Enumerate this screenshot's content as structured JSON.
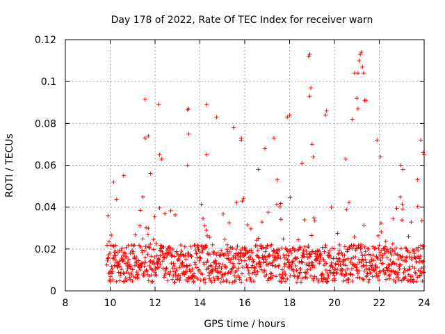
{
  "chart_data": {
    "type": "scatter",
    "title": "Day 178 of 2022, Rate Of TEC Index for receiver warn",
    "xlabel": "GPS time / hours",
    "ylabel": "ROTI / TECUs",
    "xlim": [
      8,
      24
    ],
    "ylim": [
      0,
      0.12
    ],
    "x_ticks": [
      8,
      10,
      12,
      14,
      16,
      18,
      20,
      22,
      24
    ],
    "x_tick_labels": [
      "8",
      "10",
      "12",
      "14",
      "16",
      "18",
      "20",
      "22",
      "24"
    ],
    "y_ticks": [
      0,
      0.02,
      0.04,
      0.06,
      0.08,
      0.1,
      0.12
    ],
    "y_tick_labels": [
      "0",
      "0.02",
      "0.04",
      "0.06",
      "0.08",
      "0.1",
      "0.12"
    ],
    "grid": true,
    "marker": "+",
    "color": "#ff0000",
    "series": [
      {
        "name": "ROTI",
        "points": [
          [
            11.55,
            0.0915
          ],
          [
            12.15,
            0.089
          ],
          [
            13.45,
            0.0865
          ],
          [
            13.5,
            0.087
          ],
          [
            14.3,
            0.089
          ],
          [
            14.75,
            0.083
          ],
          [
            15.5,
            0.078
          ],
          [
            15.85,
            0.073
          ],
          [
            16.9,
            0.068
          ],
          [
            17.3,
            0.073
          ],
          [
            17.9,
            0.083
          ],
          [
            18.0,
            0.084
          ],
          [
            18.85,
            0.112
          ],
          [
            18.9,
            0.113
          ],
          [
            18.95,
            0.097
          ],
          [
            18.9,
            0.093
          ],
          [
            19.6,
            0.084
          ],
          [
            19.65,
            0.086
          ],
          [
            20.8,
            0.082
          ],
          [
            20.9,
            0.104
          ],
          [
            21.05,
            0.104
          ],
          [
            21.1,
            0.11
          ],
          [
            21.15,
            0.113
          ],
          [
            21.2,
            0.114
          ],
          [
            21.25,
            0.107
          ],
          [
            21.3,
            0.104
          ],
          [
            21.35,
            0.091
          ],
          [
            21.4,
            0.091
          ],
          [
            21.0,
            0.092
          ],
          [
            21.05,
            0.087
          ],
          [
            21.9,
            0.072
          ],
          [
            22.05,
            0.064
          ],
          [
            23.85,
            0.072
          ],
          [
            23.95,
            0.066
          ],
          [
            24.0,
            0.065
          ],
          [
            13.5,
            0.075
          ],
          [
            11.55,
            0.073
          ],
          [
            11.7,
            0.074
          ],
          [
            12.2,
            0.065
          ],
          [
            12.3,
            0.063
          ],
          [
            14.3,
            0.065
          ],
          [
            15.85,
            0.072
          ],
          [
            19.0,
            0.07
          ],
          [
            19.05,
            0.064
          ],
          [
            20.5,
            0.063
          ],
          [
            10.15,
            0.052
          ],
          [
            10.6,
            0.055
          ],
          [
            11.8,
            0.056
          ],
          [
            13.45,
            0.06
          ],
          [
            16.6,
            0.058
          ],
          [
            22.95,
            0.06
          ],
          [
            23.05,
            0.058
          ],
          [
            23.7,
            0.053
          ],
          [
            17.45,
            0.053
          ],
          [
            18.55,
            0.061
          ]
        ]
      }
    ],
    "band": {
      "x_start": 9.85,
      "x_end": 24.0,
      "step": 0.0125,
      "base_min": 0.004,
      "base_max": 0.022,
      "spike_probability": 0.12,
      "spike_max": 0.045
    }
  }
}
